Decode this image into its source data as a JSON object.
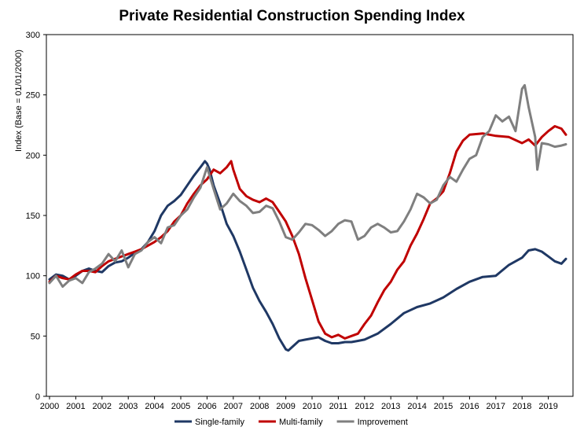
{
  "chart_data": {
    "type": "line",
    "title": "Private Residential Construction Spending Index",
    "xlabel": "",
    "ylabel": "Index (Base = 01/01/2000)",
    "xlim": [
      2000,
      2019.67
    ],
    "ylim": [
      0,
      300
    ],
    "yticks": [
      0,
      50,
      100,
      150,
      200,
      250,
      300
    ],
    "xticks": [
      "2000",
      "2001",
      "2002",
      "2003",
      "2004",
      "2005",
      "2006",
      "2007",
      "2008",
      "2009",
      "2010",
      "2011",
      "2012",
      "2013",
      "2014",
      "2015",
      "2016",
      "2017",
      "2018",
      "2019"
    ],
    "grid": false,
    "legend_position": "bottom",
    "series": [
      {
        "name": "Single-family",
        "color": "#1f3864",
        "x": [
          2000,
          2000.25,
          2000.5,
          2000.75,
          2001,
          2001.25,
          2001.5,
          2001.75,
          2002,
          2002.25,
          2002.5,
          2002.75,
          2003,
          2003.25,
          2003.5,
          2003.75,
          2004,
          2004.25,
          2004.5,
          2004.75,
          2005,
          2005.25,
          2005.5,
          2005.75,
          2005.92,
          2006,
          2006.1,
          2006.25,
          2006.5,
          2006.75,
          2007,
          2007.25,
          2007.5,
          2007.75,
          2008,
          2008.25,
          2008.5,
          2008.75,
          2009,
          2009.1,
          2009.25,
          2009.5,
          2009.75,
          2010,
          2010.25,
          2010.5,
          2010.75,
          2011,
          2011.25,
          2011.5,
          2011.75,
          2012,
          2012.5,
          2013,
          2013.5,
          2014,
          2014.5,
          2015,
          2015.5,
          2016,
          2016.5,
          2017,
          2017.5,
          2018,
          2018.25,
          2018.5,
          2018.75,
          2019,
          2019.25,
          2019.5,
          2019.67
        ],
        "values": [
          97,
          101,
          100,
          97,
          100,
          104,
          106,
          104,
          103,
          108,
          111,
          112,
          115,
          119,
          122,
          128,
          137,
          150,
          158,
          162,
          167,
          175,
          183,
          190,
          195,
          193,
          188,
          175,
          160,
          143,
          133,
          120,
          105,
          90,
          79,
          70,
          60,
          48,
          39,
          38,
          41,
          46,
          47,
          48,
          49,
          46,
          44,
          44,
          45,
          45,
          46,
          47,
          52,
          60,
          69,
          74,
          77,
          82,
          89,
          95,
          99,
          100,
          109,
          115,
          121,
          122,
          120,
          116,
          112,
          110,
          114
        ]
      },
      {
        "name": "Multi-family",
        "color": "#c00000",
        "x": [
          2000,
          2000.25,
          2000.5,
          2000.75,
          2001,
          2001.25,
          2001.5,
          2001.75,
          2002,
          2002.25,
          2002.5,
          2002.75,
          2003,
          2003.25,
          2003.5,
          2003.75,
          2004,
          2004.25,
          2004.5,
          2004.75,
          2005,
          2005.25,
          2005.5,
          2005.75,
          2006,
          2006.25,
          2006.5,
          2006.75,
          2006.92,
          2007,
          2007.25,
          2007.5,
          2007.75,
          2008,
          2008.25,
          2008.5,
          2008.75,
          2009,
          2009.25,
          2009.5,
          2009.75,
          2010,
          2010.25,
          2010.5,
          2010.75,
          2011,
          2011.25,
          2011.5,
          2011.75,
          2012,
          2012.25,
          2012.5,
          2012.75,
          2013,
          2013.25,
          2013.5,
          2013.75,
          2014,
          2014.25,
          2014.5,
          2014.75,
          2015,
          2015.25,
          2015.5,
          2015.75,
          2016,
          2016.5,
          2017,
          2017.5,
          2018,
          2018.25,
          2018.5,
          2018.75,
          2019,
          2019.25,
          2019.5,
          2019.67
        ],
        "values": [
          95,
          100,
          98,
          97,
          101,
          104,
          104,
          103,
          108,
          112,
          114,
          116,
          118,
          120,
          122,
          125,
          128,
          132,
          137,
          145,
          150,
          160,
          168,
          175,
          180,
          188,
          185,
          190,
          195,
          188,
          172,
          166,
          163,
          161,
          164,
          161,
          153,
          145,
          133,
          118,
          98,
          80,
          62,
          52,
          49,
          51,
          48,
          50,
          52,
          60,
          67,
          78,
          88,
          95,
          105,
          112,
          125,
          135,
          147,
          160,
          164,
          170,
          185,
          203,
          212,
          217,
          218,
          216,
          215,
          210,
          213,
          208,
          215,
          220,
          224,
          222,
          217
        ]
      },
      {
        "name": "Improvement",
        "color": "#7f7f7f",
        "x": [
          2000,
          2000.25,
          2000.5,
          2000.75,
          2001,
          2001.25,
          2001.5,
          2001.75,
          2002,
          2002.25,
          2002.5,
          2002.75,
          2003,
          2003.25,
          2003.5,
          2003.75,
          2004,
          2004.25,
          2004.5,
          2004.75,
          2005,
          2005.25,
          2005.5,
          2005.75,
          2006,
          2006.25,
          2006.5,
          2006.75,
          2007,
          2007.25,
          2007.5,
          2007.75,
          2008,
          2008.25,
          2008.5,
          2008.75,
          2009,
          2009.25,
          2009.5,
          2009.75,
          2010,
          2010.25,
          2010.5,
          2010.75,
          2011,
          2011.25,
          2011.5,
          2011.75,
          2012,
          2012.25,
          2012.5,
          2012.75,
          2013,
          2013.25,
          2013.5,
          2013.75,
          2014,
          2014.25,
          2014.5,
          2014.75,
          2015,
          2015.25,
          2015.5,
          2015.75,
          2016,
          2016.25,
          2016.5,
          2016.75,
          2017,
          2017.25,
          2017.5,
          2017.75,
          2018,
          2018.1,
          2018.25,
          2018.5,
          2018.58,
          2018.75,
          2019,
          2019.25,
          2019.5,
          2019.67
        ],
        "values": [
          94,
          100,
          91,
          96,
          98,
          94,
          103,
          106,
          110,
          118,
          112,
          121,
          107,
          118,
          121,
          128,
          132,
          127,
          140,
          142,
          150,
          155,
          165,
          173,
          190,
          172,
          155,
          160,
          168,
          162,
          158,
          152,
          153,
          158,
          156,
          145,
          132,
          130,
          136,
          143,
          142,
          138,
          133,
          137,
          143,
          146,
          145,
          130,
          133,
          140,
          143,
          140,
          136,
          137,
          145,
          155,
          168,
          165,
          160,
          163,
          175,
          182,
          178,
          188,
          197,
          200,
          215,
          220,
          233,
          228,
          232,
          220,
          255,
          258,
          240,
          215,
          188,
          210,
          209,
          207,
          208,
          209
        ]
      }
    ]
  }
}
